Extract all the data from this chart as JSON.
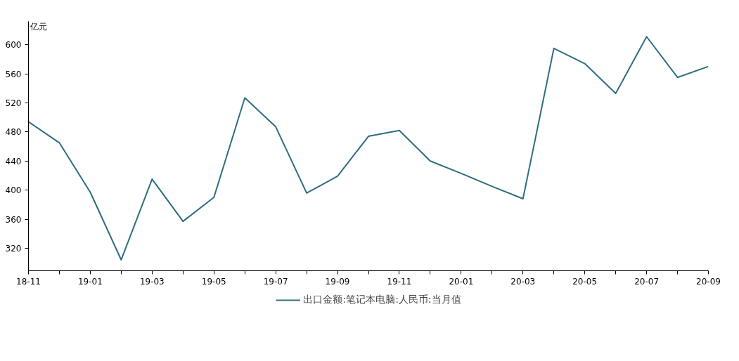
{
  "chart_data": {
    "type": "line",
    "ylabel": "亿元",
    "categories": [
      "18-11",
      null,
      "19-01",
      null,
      "19-03",
      null,
      "19-05",
      null,
      "19-07",
      null,
      "19-09",
      null,
      "19-11",
      null,
      "20-01",
      null,
      "20-03",
      null,
      "20-05",
      null,
      "20-07",
      null,
      "20-09"
    ],
    "series": [
      {
        "name": "出口金额:笔记本电脑:人民币:当月值",
        "color": "#2e6e80",
        "values": [
          494,
          465,
          397,
          304,
          415,
          357,
          390,
          527,
          487,
          396,
          419,
          474,
          482,
          440,
          423,
          405,
          388,
          595,
          574,
          533,
          611,
          555,
          570
        ]
      }
    ],
    "ylim": [
      289,
      632
    ],
    "yticks": [
      320,
      360,
      400,
      440,
      480,
      520,
      560,
      600
    ],
    "grid": false,
    "legend": "bottom",
    "marker": "none",
    "line_style": "solid"
  }
}
